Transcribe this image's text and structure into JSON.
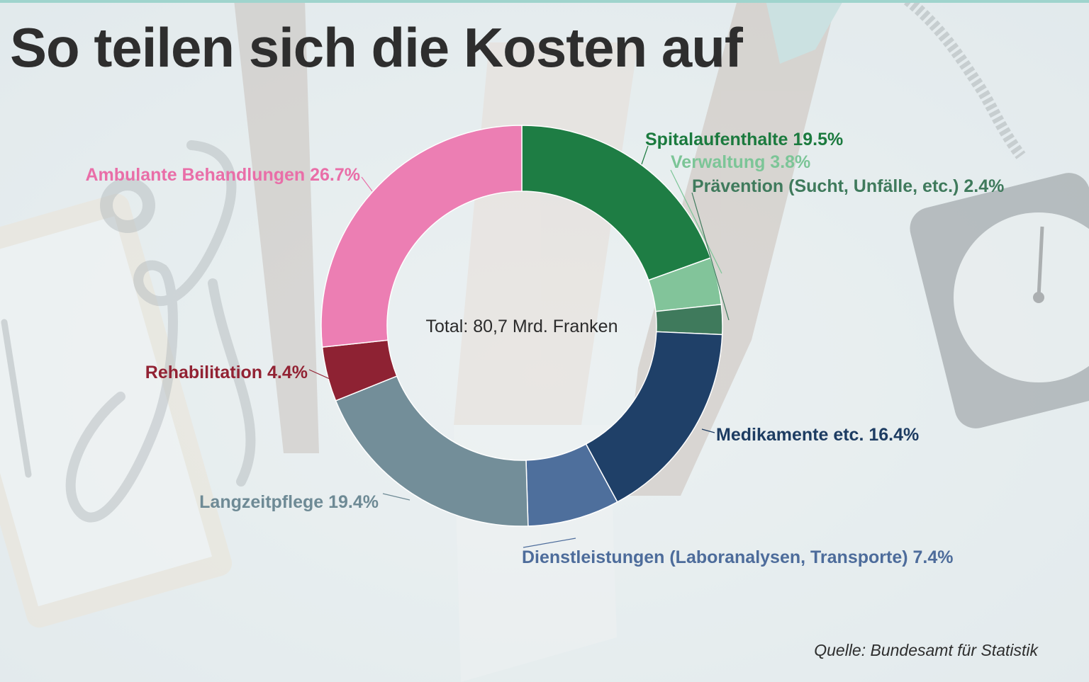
{
  "header": {
    "title": "So teilen sich die Kosten auf"
  },
  "footer": {
    "source": "Quelle: Bundesamt für Statistik"
  },
  "chart_data": {
    "type": "pie",
    "donut": true,
    "title": "So teilen sich die Kosten auf",
    "center_label": "Total: 80,7 Mrd. Franken",
    "unit": "%",
    "slices": [
      {
        "label": "Spitalaufenthalte",
        "value": 19.5,
        "display": "Spitalaufenthalte 19.5%",
        "color": "#1e7d44",
        "text_color": "#1b7a3e"
      },
      {
        "label": "Verwaltung",
        "value": 3.8,
        "display": "Verwaltung 3.8%",
        "color": "#82c49a",
        "text_color": "#7cc597"
      },
      {
        "label": "Prävention (Sucht, Unfälle, etc.)",
        "value": 2.4,
        "display": "Prävention (Sucht, Unfälle, etc.) 2.4%",
        "color": "#3f7a5c",
        "text_color": "#3f7a5c"
      },
      {
        "label": "Medikamente etc.",
        "value": 16.4,
        "display": "Medikamente etc. 16.4%",
        "color": "#1f4068",
        "text_color": "#1d3c62"
      },
      {
        "label": "Dienstleistungen (Laboranalysen, Transporte)",
        "value": 7.4,
        "display": "Dienstleistungen (Laboranalysen, Transporte) 7.4%",
        "color": "#4e6f9c",
        "text_color": "#4d6c9b"
      },
      {
        "label": "Langzeitpflege",
        "value": 19.4,
        "display": "Langzeitpflege 19.4%",
        "color": "#738e99",
        "text_color": "#6e8a95"
      },
      {
        "label": "Rehabilitation",
        "value": 4.4,
        "display": "Rehabilitation 4.4%",
        "color": "#8e2233",
        "text_color": "#922233"
      },
      {
        "label": "Ambulante Behandlungen",
        "value": 26.7,
        "display": "Ambulante Behandlungen 26.7%",
        "color": "#ec7eb3",
        "text_color": "#e96ea8"
      }
    ]
  }
}
